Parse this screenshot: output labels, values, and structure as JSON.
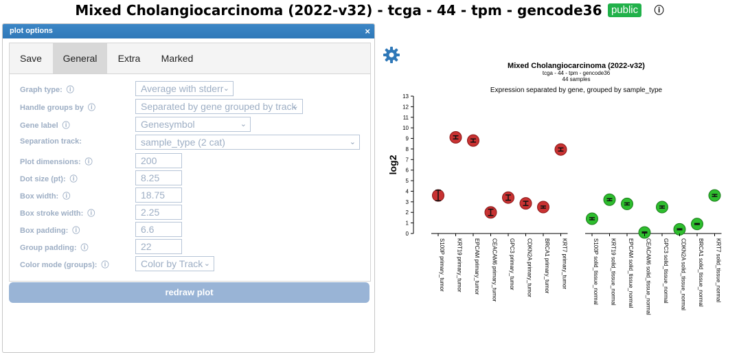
{
  "header": {
    "title": "Mixed Cholangiocarcinoma (2022-v32) - tcga - 44 - tpm - gencode36",
    "badge": "public",
    "info_icon": "info-icon"
  },
  "dialog": {
    "title": "plot options",
    "close": "×",
    "tabs": [
      "Save",
      "General",
      "Extra",
      "Marked"
    ],
    "active_tab": "General",
    "fields": [
      {
        "label": "Graph type:",
        "value": "Average with stderr",
        "type": "select"
      },
      {
        "label": "Handle groups by",
        "value": "Separated by gene grouped by track",
        "type": "select"
      },
      {
        "label": "Gene label",
        "value": "Genesymbol",
        "type": "select"
      },
      {
        "label": "Separation track:",
        "value": "sample_type (2 cat)",
        "type": "select"
      },
      {
        "label": "Plot dimensions:",
        "value": "200",
        "type": "input"
      },
      {
        "label": "Dot size (pt):",
        "value": "8.25",
        "type": "input"
      },
      {
        "label": "Box width:",
        "value": "18.75",
        "type": "input"
      },
      {
        "label": "Box stroke width:",
        "value": "2.25",
        "type": "input"
      },
      {
        "label": "Box padding:",
        "value": "6.6",
        "type": "input"
      },
      {
        "label": "Group padding:",
        "value": "22",
        "type": "input"
      },
      {
        "label": "Color mode (groups):",
        "value": "Color by Track",
        "type": "select"
      }
    ],
    "redraw": "redraw plot"
  },
  "plot": {
    "title": "Mixed Cholangiocarcinoma (2022-v32)",
    "subtitle1": "tcga - 44 - tpm - gencode36",
    "subtitle2": "44 samples",
    "subtitle3": "Expression separated by gene, grouped by sample_type",
    "ylabel": "log2",
    "settings_icon": "gear-icon"
  },
  "chart_data": {
    "type": "scatter",
    "ylabel": "log2",
    "ylim": [
      0,
      13
    ],
    "yticks": [
      0,
      1,
      2,
      3,
      4,
      5,
      6,
      7,
      8,
      9,
      10,
      11,
      12,
      13
    ],
    "colors": {
      "primary_tumor": "#c83232",
      "solid_tissue_normal": "#2ebd2e"
    },
    "groups": [
      {
        "name": "primary_tumor",
        "points": [
          {
            "label": "S100P primary_tumor",
            "value": 3.6,
            "err": 0.5
          },
          {
            "label": "KRT19 primary_tumor",
            "value": 9.1,
            "err": 0.15
          },
          {
            "label": "EPCAM primary_tumor",
            "value": 8.8,
            "err": 0.15
          },
          {
            "label": "CEACAM6 primary_tumor",
            "value": 2.0,
            "err": 0.3
          },
          {
            "label": "GPC3 primary_tumor",
            "value": 3.4,
            "err": 0.25
          },
          {
            "label": "CDKN2A primary_tumor",
            "value": 2.85,
            "err": 0.2
          },
          {
            "label": "BRCA1 primary_tumor",
            "value": 2.5,
            "err": 0.1
          },
          {
            "label": "KRT7 primary_tumor",
            "value": 7.95,
            "err": 0.15
          }
        ]
      },
      {
        "name": "solid_tissue_normal",
        "points": [
          {
            "label": "S100P solid_tissue_normal",
            "value": 1.4,
            "err": 0.1
          },
          {
            "label": "KRT19 solid_tissue_normal",
            "value": 3.2,
            "err": 0.1
          },
          {
            "label": "EPCAM solid_tissue_normal",
            "value": 2.8,
            "err": 0.1
          },
          {
            "label": "CEACAM6 solid_tissue_normal",
            "value": 0.1,
            "err": 0.05
          },
          {
            "label": "GPC3 solid_tissue_normal",
            "value": 2.5,
            "err": 0.1
          },
          {
            "label": "CDKN2A solid_tissue_normal",
            "value": 0.4,
            "err": 0.05
          },
          {
            "label": "BRCA1 solid_tissue_normal",
            "value": 0.9,
            "err": 0.05
          },
          {
            "label": "KRT7 solid_tissue_normal",
            "value": 3.6,
            "err": 0.1
          }
        ]
      }
    ]
  }
}
